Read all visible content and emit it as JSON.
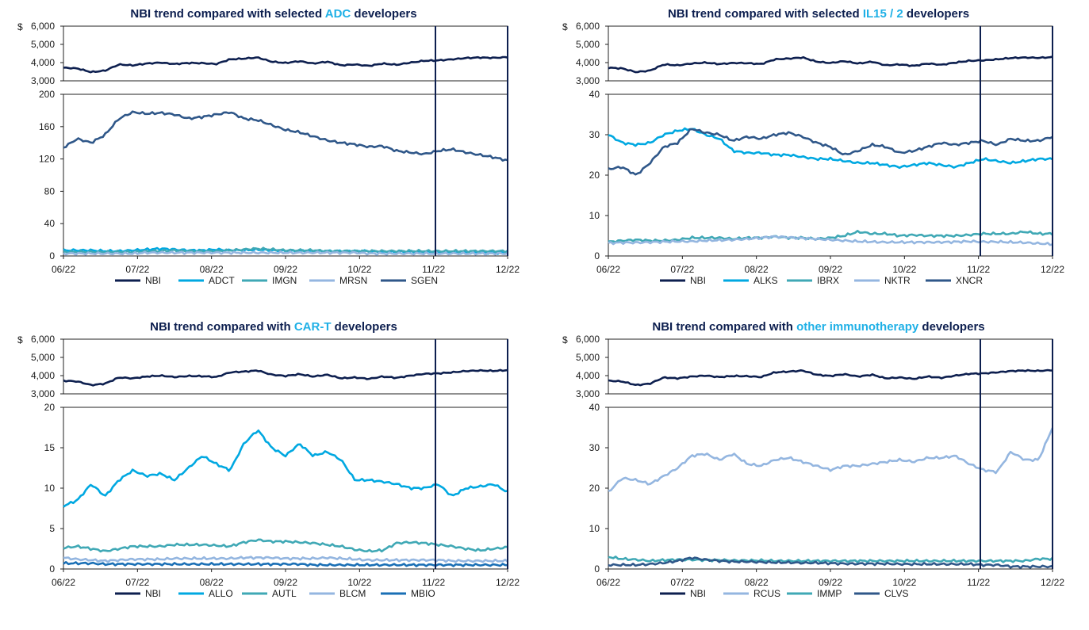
{
  "x_ticks": [
    "06/22",
    "07/22",
    "08/22",
    "09/22",
    "10/22",
    "11/22",
    "12/22"
  ],
  "currency_symbol": "$",
  "chart_data": [
    {
      "type": "line",
      "title_prefix": "NBI trend compared with selected ",
      "title_highlight": "ADC",
      "title_suffix": " developers",
      "nbi_axis": {
        "ylim": [
          3000,
          6000
        ],
        "ticks": [
          "3,000",
          "4,000",
          "5,000",
          "6,000"
        ]
      },
      "main_axis": {
        "ylim": [
          0,
          200
        ],
        "ticks": [
          "0",
          "40",
          "80",
          "120",
          "160",
          "200"
        ]
      },
      "series": [
        {
          "name": "NBI",
          "color": "#0d1f4f",
          "axis": "nbi",
          "values": [
            3720,
            3680,
            3480,
            3560,
            3900,
            3850,
            3950,
            4000,
            3920,
            3980,
            3970,
            3920,
            4180,
            4220,
            4280,
            4050,
            3980,
            4080,
            3950,
            4050,
            3850,
            3900,
            3820,
            3950,
            3880,
            4000,
            4100,
            4120,
            4180,
            4250,
            4280,
            4260,
            4300
          ]
        },
        {
          "name": "ADCT",
          "color": "#00a8e1",
          "axis": "main",
          "values": [
            7,
            7,
            7,
            6,
            6,
            7,
            8,
            9,
            8,
            7,
            7,
            8,
            7,
            7,
            8,
            7,
            6,
            6,
            6,
            6,
            6,
            6,
            6,
            5,
            5,
            5,
            5,
            4,
            4,
            4,
            4,
            4,
            4
          ]
        },
        {
          "name": "IMGN",
          "color": "#3fa8b5",
          "axis": "main",
          "values": [
            5,
            5,
            5,
            5,
            5,
            5,
            6,
            6,
            7,
            6,
            6,
            6,
            7,
            8,
            9,
            8,
            7,
            7,
            7,
            6,
            6,
            6,
            6,
            6,
            6,
            6,
            6,
            6,
            6,
            6,
            6,
            6,
            6
          ]
        },
        {
          "name": "MRSN",
          "color": "#94b6e0",
          "axis": "main",
          "values": [
            3,
            3,
            3,
            3,
            3,
            3,
            4,
            4,
            4,
            4,
            4,
            4,
            4,
            4,
            4,
            4,
            4,
            4,
            4,
            4,
            4,
            4,
            3,
            3,
            3,
            3,
            3,
            3,
            3,
            3,
            3,
            3,
            3
          ]
        },
        {
          "name": "SGEN",
          "color": "#2f5789",
          "axis": "main",
          "values": [
            134,
            145,
            140,
            150,
            170,
            178,
            176,
            177,
            175,
            170,
            172,
            175,
            178,
            170,
            168,
            162,
            156,
            153,
            148,
            143,
            140,
            138,
            135,
            136,
            130,
            128,
            126,
            130,
            132,
            128,
            125,
            122,
            118
          ]
        }
      ]
    },
    {
      "type": "line",
      "title_prefix": "NBI trend compared with selected ",
      "title_highlight": "IL15 / 2",
      "title_suffix": " developers",
      "nbi_axis": {
        "ylim": [
          3000,
          6000
        ],
        "ticks": [
          "3,000",
          "4,000",
          "5,000",
          "6,000"
        ]
      },
      "main_axis": {
        "ylim": [
          0,
          40
        ],
        "ticks": [
          "0",
          "10",
          "20",
          "30",
          "40"
        ]
      },
      "series": [
        {
          "name": "NBI",
          "color": "#0d1f4f",
          "axis": "nbi",
          "values": [
            3720,
            3680,
            3480,
            3560,
            3900,
            3850,
            3950,
            4000,
            3920,
            3980,
            3970,
            3920,
            4180,
            4220,
            4280,
            4050,
            3980,
            4080,
            3950,
            4050,
            3850,
            3900,
            3820,
            3950,
            3880,
            4000,
            4100,
            4120,
            4180,
            4250,
            4280,
            4260,
            4300
          ]
        },
        {
          "name": "ALKS",
          "color": "#00a8e1",
          "axis": "main",
          "values": [
            30,
            28,
            27.5,
            28,
            30,
            31,
            31.5,
            30,
            29,
            26,
            25.5,
            25.5,
            25,
            25,
            24.5,
            24,
            24,
            23.5,
            23,
            23,
            22.5,
            22,
            22.5,
            23,
            22.5,
            22,
            23,
            24,
            23.5,
            23,
            23.5,
            24,
            24
          ]
        },
        {
          "name": "IBRX",
          "color": "#3fa8b5",
          "axis": "main",
          "values": [
            3.5,
            3.8,
            4,
            3.8,
            3.8,
            4,
            4.5,
            4.5,
            4.5,
            4.2,
            4.5,
            4.5,
            4.8,
            4.5,
            4.5,
            4.2,
            4.5,
            5,
            6,
            5.5,
            5.5,
            5,
            5.2,
            5,
            5,
            5,
            5.2,
            5.5,
            5.5,
            5.5,
            6,
            5.5,
            5.5
          ]
        },
        {
          "name": "NKTR",
          "color": "#94b6e0",
          "axis": "main",
          "values": [
            3.2,
            3.3,
            3.3,
            3.4,
            3.5,
            3.6,
            3.6,
            3.8,
            3.9,
            4,
            4.2,
            4.5,
            4.8,
            4.6,
            4.4,
            4.2,
            4,
            3.8,
            3.6,
            3.5,
            3.4,
            3.4,
            3.4,
            3.4,
            3.4,
            3.5,
            3.6,
            3.5,
            3.5,
            3.4,
            3.3,
            3.1,
            2.9
          ]
        },
        {
          "name": "XNCR",
          "color": "#2f5789",
          "axis": "main",
          "values": [
            21.5,
            22,
            20,
            23,
            27,
            28,
            31.5,
            30.5,
            30,
            28.5,
            29.5,
            29,
            30,
            30.5,
            29.5,
            28,
            27,
            25,
            26,
            27.5,
            27,
            25.5,
            26,
            27,
            28,
            27.5,
            28,
            28.5,
            27.5,
            29,
            28.5,
            28.5,
            29.5
          ]
        }
      ]
    },
    {
      "type": "line",
      "title_prefix": "NBI trend compared with ",
      "title_highlight": "CAR-T",
      "title_suffix": " developers",
      "nbi_axis": {
        "ylim": [
          3000,
          6000
        ],
        "ticks": [
          "3,000",
          "4,000",
          "5,000",
          "6,000"
        ]
      },
      "main_axis": {
        "ylim": [
          0,
          20
        ],
        "ticks": [
          "0",
          "5",
          "10",
          "15",
          "20"
        ]
      },
      "series": [
        {
          "name": "NBI",
          "color": "#0d1f4f",
          "axis": "nbi",
          "values": [
            3720,
            3680,
            3480,
            3560,
            3900,
            3850,
            3950,
            4000,
            3920,
            3980,
            3970,
            3920,
            4180,
            4220,
            4280,
            4050,
            3980,
            4080,
            3950,
            4050,
            3850,
            3900,
            3820,
            3950,
            3880,
            4000,
            4100,
            4120,
            4180,
            4250,
            4280,
            4260,
            4300
          ]
        },
        {
          "name": "ALLO",
          "color": "#00a8e1",
          "axis": "main",
          "values": [
            7.8,
            8.5,
            10.5,
            9,
            11,
            12.2,
            11.5,
            11.8,
            11,
            12.5,
            14,
            13,
            12.2,
            15.5,
            17.2,
            15,
            14,
            15.5,
            14,
            14.5,
            13.5,
            11,
            11,
            10.8,
            10.5,
            10,
            10,
            10.5,
            9,
            10,
            10.2,
            10.5,
            9.5
          ]
        },
        {
          "name": "AUTL",
          "color": "#3fa8b5",
          "axis": "main",
          "values": [
            2.6,
            2.8,
            2.5,
            2.2,
            2.5,
            2.8,
            2.8,
            2.8,
            3,
            3,
            3,
            2.9,
            2.8,
            3.3,
            3.6,
            3.4,
            3.4,
            3.3,
            3.2,
            3,
            2.8,
            2.4,
            2.2,
            2.3,
            3.2,
            3.3,
            3.2,
            3,
            2.8,
            2.5,
            2.3,
            2.5,
            2.7
          ]
        },
        {
          "name": "BLCM",
          "color": "#94b6e0",
          "axis": "main",
          "values": [
            1.4,
            1.2,
            1.1,
            1,
            1.1,
            1.2,
            1.2,
            1.2,
            1.3,
            1.3,
            1.3,
            1.3,
            1.3,
            1.4,
            1.4,
            1.4,
            1.3,
            1.3,
            1.3,
            1.4,
            1.3,
            1.2,
            1.1,
            1.1,
            1.1,
            1.1,
            1.1,
            1.1,
            1,
            1,
            1,
            1,
            1
          ]
        },
        {
          "name": "MBIO",
          "color": "#1a6fb5",
          "axis": "main",
          "values": [
            0.7,
            0.7,
            0.7,
            0.6,
            0.6,
            0.6,
            0.6,
            0.6,
            0.6,
            0.6,
            0.6,
            0.6,
            0.6,
            0.6,
            0.6,
            0.6,
            0.6,
            0.6,
            0.5,
            0.5,
            0.5,
            0.5,
            0.5,
            0.5,
            0.5,
            0.5,
            0.5,
            0.5,
            0.5,
            0.5,
            0.5,
            0.5,
            0.5
          ]
        }
      ]
    },
    {
      "type": "line",
      "title_prefix": "NBI trend compared with ",
      "title_highlight": "other immunotherapy",
      "title_suffix": " developers",
      "nbi_axis": {
        "ylim": [
          3000,
          6000
        ],
        "ticks": [
          "3,000",
          "4,000",
          "5,000",
          "6,000"
        ]
      },
      "main_axis": {
        "ylim": [
          0,
          40
        ],
        "ticks": [
          "0",
          "10",
          "20",
          "30",
          "40"
        ]
      },
      "series": [
        {
          "name": "NBI",
          "color": "#0d1f4f",
          "axis": "nbi",
          "values": [
            3720,
            3680,
            3480,
            3560,
            3900,
            3850,
            3950,
            4000,
            3920,
            3980,
            3970,
            3920,
            4180,
            4220,
            4280,
            4050,
            3980,
            4080,
            3950,
            4050,
            3850,
            3900,
            3820,
            3950,
            3880,
            4000,
            4100,
            4120,
            4180,
            4250,
            4280,
            4260,
            4300
          ]
        },
        {
          "name": "RCUS",
          "color": "#94b6e0",
          "axis": "main",
          "values": [
            19,
            22.5,
            22,
            21,
            23,
            25,
            28,
            28.5,
            27,
            28.5,
            26,
            25.5,
            27,
            27.5,
            26.5,
            25.5,
            24.5,
            25.5,
            25.5,
            26,
            26.5,
            27,
            26.5,
            27.5,
            27.5,
            28,
            26,
            24.5,
            24,
            29,
            27,
            27,
            35
          ]
        },
        {
          "name": "IMMP",
          "color": "#3fa8b5",
          "axis": "main",
          "values": [
            3,
            2.5,
            2.3,
            2,
            2.2,
            2.3,
            2.3,
            2.2,
            2.2,
            2.1,
            2.1,
            2.1,
            2,
            2,
            2,
            2,
            2,
            2,
            2,
            2,
            2,
            2,
            2,
            2,
            2,
            2,
            2,
            2,
            2,
            2,
            2,
            2.5,
            2.5
          ]
        },
        {
          "name": "CLVS",
          "color": "#2f5789",
          "axis": "main",
          "values": [
            1,
            1,
            1,
            1.2,
            1.5,
            2,
            2.8,
            2.3,
            2,
            1.8,
            1.8,
            1.7,
            1.6,
            1.6,
            1.5,
            1.5,
            1.4,
            1.3,
            1.3,
            1.3,
            1.3,
            1.2,
            1.2,
            1.2,
            1.2,
            1.2,
            1.2,
            1,
            1,
            0.6,
            0.6,
            0.6,
            0.6
          ]
        }
      ]
    }
  ]
}
